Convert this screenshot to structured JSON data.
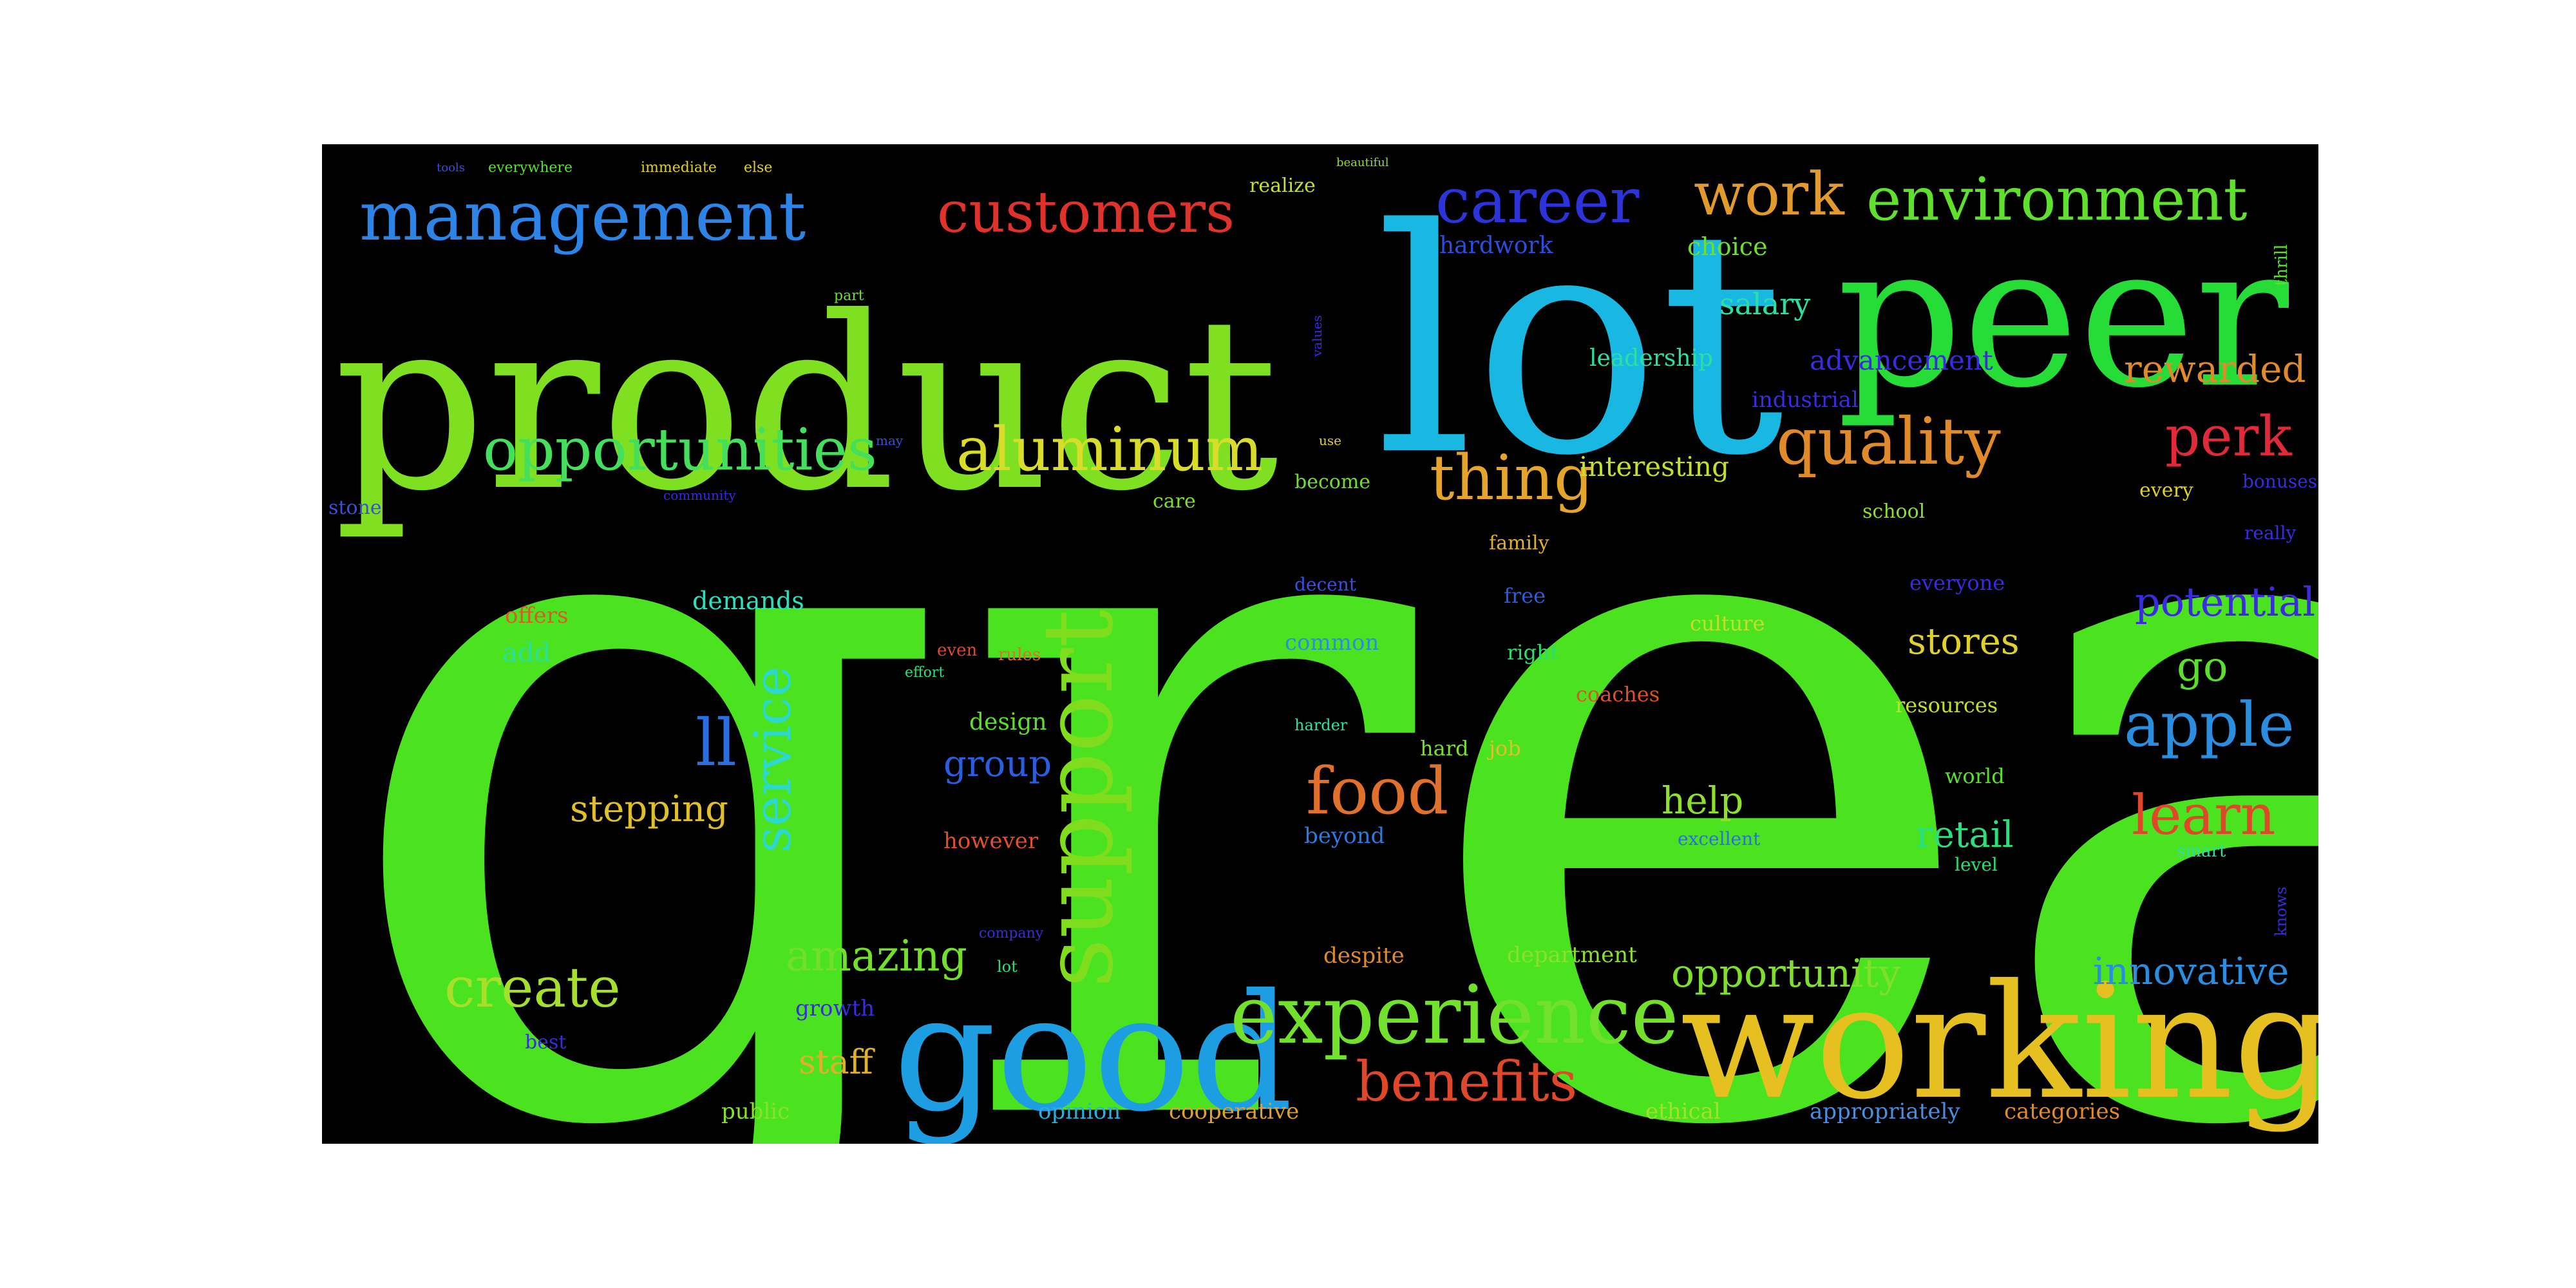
{
  "words": [
    {
      "text": "great",
      "color": "#4be320"
    },
    {
      "text": "product",
      "color": "#7ee021"
    },
    {
      "text": "lot",
      "color": "#19b8e3"
    },
    {
      "text": "peer",
      "color": "#26dd38"
    },
    {
      "text": "working",
      "color": "#e6c020"
    },
    {
      "text": "good",
      "color": "#1d9ee3"
    },
    {
      "text": "experience",
      "color": "#71e12b"
    },
    {
      "text": "support",
      "color": "#7fdd1e"
    },
    {
      "text": "management",
      "color": "#2c84e6"
    },
    {
      "text": "environment",
      "color": "#5fe02c"
    },
    {
      "text": "opportunities",
      "color": "#45e05b"
    },
    {
      "text": "aluminum",
      "color": "#d9dc28"
    },
    {
      "text": "customers",
      "color": "#e0322a"
    },
    {
      "text": "career",
      "color": "#2b33d9"
    },
    {
      "text": "work",
      "color": "#e39a2c"
    },
    {
      "text": "quality",
      "color": "#e08a2a"
    },
    {
      "text": "thing",
      "color": "#e5a52a"
    },
    {
      "text": "service",
      "color": "#2bd9cf"
    },
    {
      "text": "create",
      "color": "#a6e02a"
    },
    {
      "text": "food",
      "color": "#e0702a"
    },
    {
      "text": "apple",
      "color": "#2a8ee0"
    },
    {
      "text": "learn",
      "color": "#e0472a"
    },
    {
      "text": "benefits",
      "color": "#e0472a"
    },
    {
      "text": "perk",
      "color": "#e02a3a"
    },
    {
      "text": "amazing",
      "color": "#72e02a"
    },
    {
      "text": "potential",
      "color": "#3a2ae0"
    },
    {
      "text": "ll",
      "color": "#2a6ee0"
    },
    {
      "text": "opportunity",
      "color": "#7ee02a"
    },
    {
      "text": "innovative",
      "color": "#2a8ee0"
    },
    {
      "text": "rewarded",
      "color": "#e08a2a"
    },
    {
      "text": "stepping",
      "color": "#e0c02a"
    },
    {
      "text": "group",
      "color": "#2a5ee0"
    },
    {
      "text": "stores",
      "color": "#e0d02a"
    },
    {
      "text": "go",
      "color": "#5ae02a"
    },
    {
      "text": "retail",
      "color": "#2ae07a"
    },
    {
      "text": "help",
      "color": "#8ee02a"
    },
    {
      "text": "staff",
      "color": "#e0b02a"
    },
    {
      "text": "salary",
      "color": "#2ae0a6"
    },
    {
      "text": "advancement",
      "color": "#3a2ae0"
    },
    {
      "text": "interesting",
      "color": "#c6e02a"
    },
    {
      "text": "choice",
      "color": "#6ee02a"
    },
    {
      "text": "hardwork",
      "color": "#2a4ee0"
    },
    {
      "text": "leadership",
      "color": "#2ae0a0"
    },
    {
      "text": "industrial",
      "color": "#2a3ae0"
    },
    {
      "text": "demands",
      "color": "#2ae0c0"
    },
    {
      "text": "offers",
      "color": "#e0582a"
    },
    {
      "text": "add",
      "color": "#2ae09a"
    },
    {
      "text": "common",
      "color": "#2a8ee0"
    },
    {
      "text": "design",
      "color": "#5ae02a"
    },
    {
      "text": "however",
      "color": "#e0502a"
    },
    {
      "text": "beyond",
      "color": "#2a7ae0"
    },
    {
      "text": "despite",
      "color": "#e08a2a"
    },
    {
      "text": "department",
      "color": "#8ae02a"
    },
    {
      "text": "cooperative",
      "color": "#e0a02a"
    },
    {
      "text": "opinion",
      "color": "#2ab0e0"
    },
    {
      "text": "public",
      "color": "#8ae02a"
    },
    {
      "text": "ethical",
      "color": "#a6e02a"
    },
    {
      "text": "appropriately",
      "color": "#4a8ee0"
    },
    {
      "text": "categories",
      "color": "#e08a2a"
    },
    {
      "text": "growth",
      "color": "#3a2ae0"
    },
    {
      "text": "best",
      "color": "#3a2ae0"
    },
    {
      "text": "everyone",
      "color": "#3a2ae0"
    },
    {
      "text": "culture",
      "color": "#c0e02a"
    },
    {
      "text": "right",
      "color": "#2ae06a"
    },
    {
      "text": "coaches",
      "color": "#e0502a"
    },
    {
      "text": "resources",
      "color": "#c0e02a"
    },
    {
      "text": "hard",
      "color": "#7ae02a"
    },
    {
      "text": "job",
      "color": "#e0c02a"
    },
    {
      "text": "world",
      "color": "#5ae02a"
    },
    {
      "text": "excellent",
      "color": "#2a6ee0"
    },
    {
      "text": "level",
      "color": "#2ae06a"
    },
    {
      "text": "bonuses",
      "color": "#3a2ae0"
    },
    {
      "text": "school",
      "color": "#8ae02a"
    },
    {
      "text": "really",
      "color": "#3a2ae0"
    },
    {
      "text": "every",
      "color": "#e0d02a"
    },
    {
      "text": "family",
      "color": "#e0b02a"
    },
    {
      "text": "free",
      "color": "#2a5ee0"
    },
    {
      "text": "decent",
      "color": "#3a4ee0"
    },
    {
      "text": "become",
      "color": "#6ee02a"
    },
    {
      "text": "care",
      "color": "#7ae02a"
    },
    {
      "text": "realize",
      "color": "#c6e02a"
    },
    {
      "text": "stone",
      "color": "#3a4ee0"
    },
    {
      "text": "everywhere",
      "color": "#5ae02a"
    },
    {
      "text": "immediate",
      "color": "#e0d02a"
    },
    {
      "text": "else",
      "color": "#e0d02a"
    },
    {
      "text": "tools",
      "color": "#3a4ee0"
    },
    {
      "text": "community",
      "color": "#3a2ae0"
    },
    {
      "text": "rules",
      "color": "#e0702a"
    },
    {
      "text": "effort",
      "color": "#2ae07a"
    },
    {
      "text": "even",
      "color": "#e04a2a"
    },
    {
      "text": "harder",
      "color": "#2ae0a6"
    },
    {
      "text": "smart",
      "color": "#2ae0a6"
    },
    {
      "text": "lot",
      "color": "#2ae07a"
    },
    {
      "text": "company",
      "color": "#3a2ae0"
    },
    {
      "text": "knows",
      "color": "#3a2ae0"
    },
    {
      "text": "thrill",
      "color": "#5ae02a"
    },
    {
      "text": "values",
      "color": "#3a2ae0"
    },
    {
      "text": "beautiful",
      "color": "#8ae02a"
    },
    {
      "text": "part",
      "color": "#6ee02a"
    },
    {
      "text": "may",
      "color": "#3a4ee0"
    },
    {
      "text": "use",
      "color": "#e0d02a"
    }
  ]
}
